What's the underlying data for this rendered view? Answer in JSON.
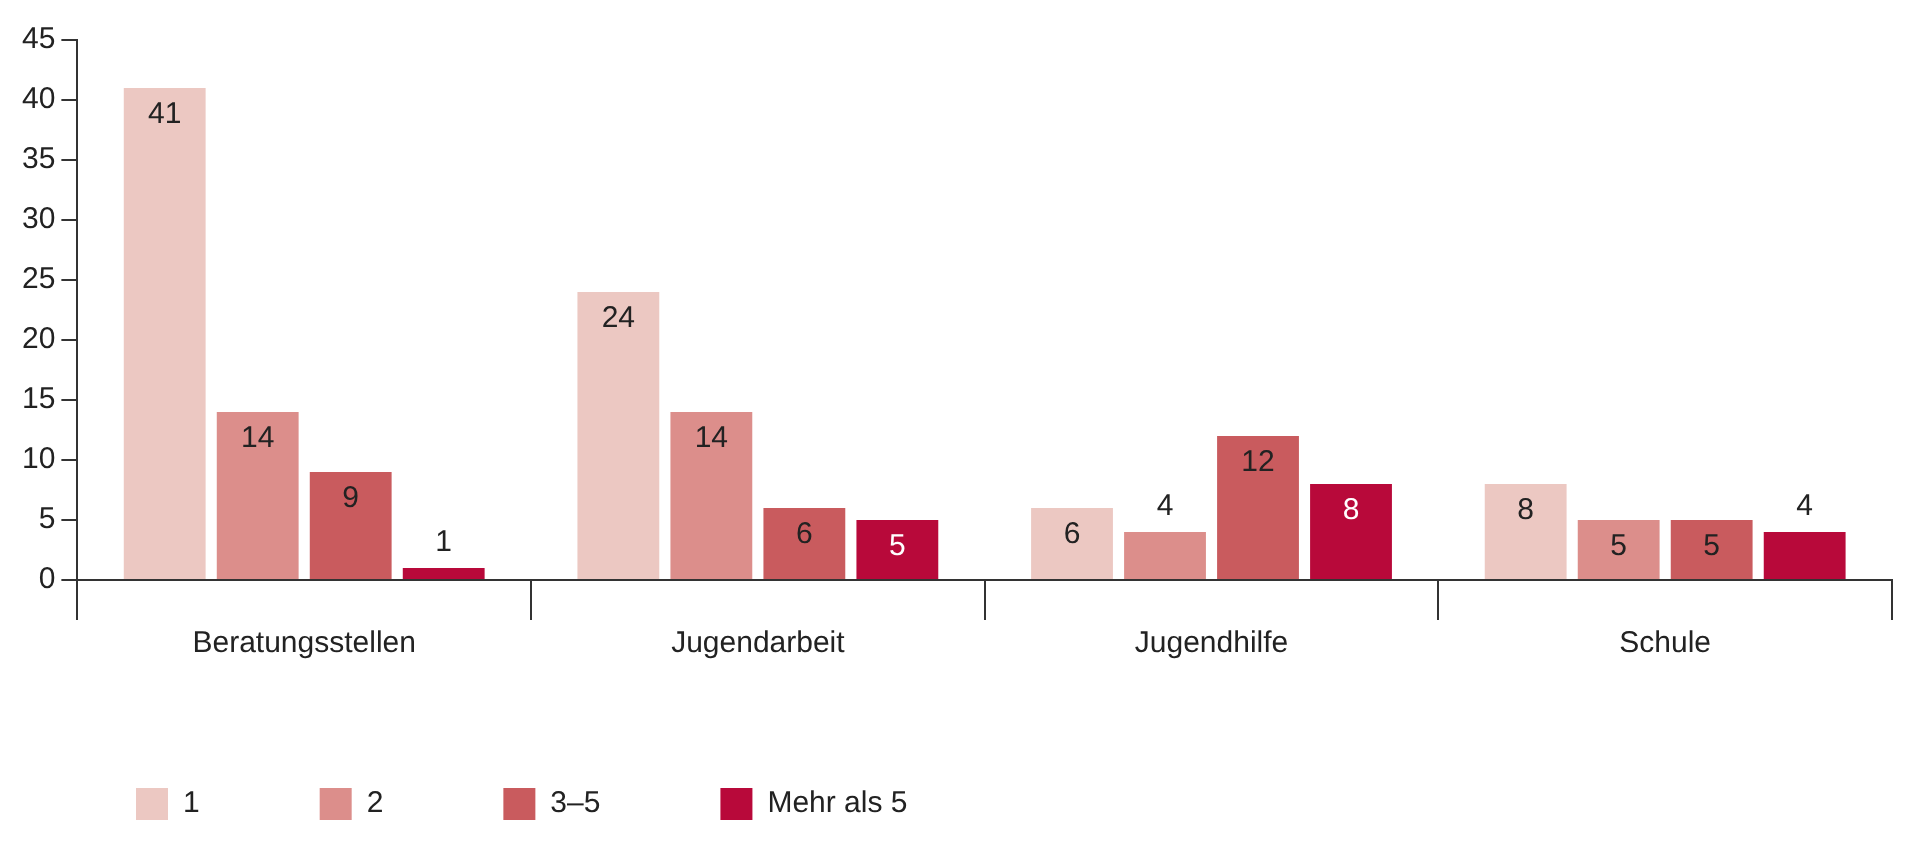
{
  "chart_data": {
    "type": "bar",
    "categories": [
      "Beratungsstellen",
      "Jugendarbeit",
      "Jugendhilfe",
      "Schule"
    ],
    "series": [
      {
        "name": "1",
        "color": "#ecc8c2",
        "values": [
          41,
          24,
          6,
          8
        ]
      },
      {
        "name": "2",
        "color": "#dc8e8b",
        "values": [
          14,
          14,
          4,
          5
        ]
      },
      {
        "name": "3–5",
        "color": "#c95b5e",
        "values": [
          9,
          6,
          12,
          5
        ]
      },
      {
        "name": "Mehr als 5",
        "color": "#b8093a",
        "values": [
          1,
          5,
          8,
          4
        ]
      }
    ],
    "ylim": [
      0,
      45
    ],
    "yticks": [
      0,
      5,
      10,
      15,
      20,
      25,
      30,
      35,
      40,
      45
    ],
    "grid": false,
    "legend": "bottom left",
    "data_labels": true
  }
}
